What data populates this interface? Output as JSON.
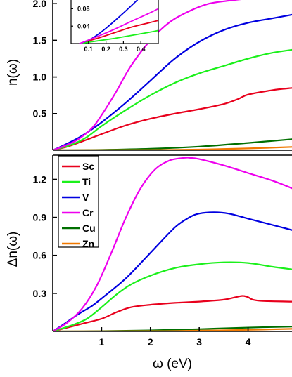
{
  "chart_data": [
    {
      "type": "line",
      "panel": "top",
      "xlabel": "",
      "ylabel": "n(ω)",
      "xlim": [
        0,
        4.9
      ],
      "ylim": [
        0,
        2.05
      ],
      "yticks": [
        "0.5",
        "1.0",
        "1.5",
        "2.0"
      ],
      "series": [
        {
          "name": "Sc",
          "color": "#e8001c",
          "x": [
            0,
            0.3,
            0.6,
            1.0,
            1.5,
            2.0,
            2.5,
            3.0,
            3.5,
            3.8,
            4.0,
            4.5,
            4.9
          ],
          "y": [
            0,
            0.05,
            0.12,
            0.22,
            0.34,
            0.43,
            0.5,
            0.56,
            0.63,
            0.7,
            0.76,
            0.82,
            0.85
          ]
        },
        {
          "name": "Ti",
          "color": "#1bf01b",
          "x": [
            0,
            0.4,
            0.7,
            1.0,
            1.5,
            2.0,
            2.5,
            3.0,
            3.5,
            4.0,
            4.5,
            4.9
          ],
          "y": [
            0,
            0.08,
            0.18,
            0.33,
            0.55,
            0.75,
            0.92,
            1.05,
            1.15,
            1.25,
            1.33,
            1.37
          ]
        },
        {
          "name": "V",
          "color": "#0000e0",
          "x": [
            0,
            0.2,
            0.5,
            0.7,
            1.0,
            1.5,
            2.0,
            2.5,
            3.0,
            3.5,
            4.0,
            4.5,
            4.9
          ],
          "y": [
            0,
            0.06,
            0.16,
            0.24,
            0.38,
            0.65,
            0.95,
            1.25,
            1.48,
            1.64,
            1.74,
            1.8,
            1.85
          ]
        },
        {
          "name": "Cr",
          "color": "#ee00ee",
          "x": [
            0,
            0.2,
            0.5,
            0.8,
            1.0,
            1.3,
            1.6,
            2.0,
            2.4,
            2.8,
            3.2,
            3.6,
            3.85
          ],
          "y": [
            0,
            0.05,
            0.14,
            0.3,
            0.48,
            0.8,
            1.15,
            1.5,
            1.75,
            1.9,
            2.0,
            2.04,
            2.06
          ]
        },
        {
          "name": "Cu",
          "color": "#006f00",
          "x": [
            0,
            1.0,
            2.0,
            3.0,
            4.0,
            4.9
          ],
          "y": [
            0,
            0.005,
            0.02,
            0.05,
            0.1,
            0.15
          ]
        },
        {
          "name": "Zn",
          "color": "#f07800",
          "x": [
            0,
            2.0,
            3.0,
            4.0,
            4.9
          ],
          "y": [
            0,
            0.003,
            0.01,
            0.025,
            0.045
          ]
        }
      ]
    },
    {
      "type": "line",
      "panel": "inset",
      "xlim": [
        0,
        0.5
      ],
      "ylim": [
        0,
        0.1
      ],
      "xticks": [
        "0.1",
        "0.2",
        "0.3",
        "0.4"
      ],
      "yticks": [
        "0.04",
        "0.08"
      ],
      "series": [
        {
          "name": "Sc",
          "color": "#e8001c",
          "x": [
            0.05,
            0.15,
            0.25,
            0.35,
            0.45,
            0.5
          ],
          "y": [
            0,
            0.012,
            0.025,
            0.038,
            0.048,
            0.053
          ]
        },
        {
          "name": "Ti",
          "color": "#1bf01b",
          "x": [
            0.05,
            0.15,
            0.25,
            0.35,
            0.45,
            0.5
          ],
          "y": [
            0,
            0.006,
            0.012,
            0.019,
            0.026,
            0.03
          ]
        },
        {
          "name": "V",
          "color": "#0000e0",
          "x": [
            0.05,
            0.12,
            0.2,
            0.3,
            0.38
          ],
          "y": [
            0,
            0.012,
            0.035,
            0.07,
            0.1
          ]
        },
        {
          "name": "Cr",
          "color": "#ee00ee",
          "x": [
            0.05,
            0.15,
            0.25,
            0.35,
            0.45,
            0.5
          ],
          "y": [
            0,
            0.016,
            0.033,
            0.052,
            0.07,
            0.08
          ]
        }
      ]
    },
    {
      "type": "line",
      "panel": "bottom",
      "xlabel": "ω (eV)",
      "ylabel": "Δn(ω)",
      "xlim": [
        0,
        4.9
      ],
      "ylim": [
        0,
        1.38
      ],
      "xticks": [
        "1",
        "2",
        "3",
        "4"
      ],
      "yticks": [
        "0.3",
        "0.6",
        "0.9",
        "1.2"
      ],
      "legend_position": "top-left",
      "series": [
        {
          "name": "Sc",
          "color": "#e8001c",
          "x": [
            0,
            0.3,
            0.6,
            1.0,
            1.3,
            1.6,
            2.0,
            2.5,
            3.0,
            3.5,
            3.8,
            3.9,
            4.0,
            4.1,
            4.3,
            4.9
          ],
          "y": [
            0,
            0.03,
            0.06,
            0.1,
            0.15,
            0.19,
            0.21,
            0.225,
            0.235,
            0.25,
            0.275,
            0.28,
            0.27,
            0.25,
            0.24,
            0.235
          ]
        },
        {
          "name": "Ti",
          "color": "#1bf01b",
          "x": [
            0,
            0.4,
            0.7,
            1.0,
            1.3,
            1.6,
            2.0,
            2.5,
            3.0,
            3.5,
            4.0,
            4.5,
            4.9
          ],
          "y": [
            0,
            0.05,
            0.1,
            0.19,
            0.29,
            0.37,
            0.44,
            0.5,
            0.53,
            0.545,
            0.54,
            0.51,
            0.49
          ]
        },
        {
          "name": "V",
          "color": "#0000e0",
          "x": [
            0,
            0.2,
            0.5,
            0.8,
            1.0,
            1.5,
            2.0,
            2.5,
            2.8,
            3.0,
            3.3,
            3.6,
            4.0,
            4.5,
            4.9
          ],
          "y": [
            0,
            0.05,
            0.13,
            0.2,
            0.26,
            0.42,
            0.62,
            0.82,
            0.9,
            0.93,
            0.94,
            0.93,
            0.89,
            0.84,
            0.8
          ]
        },
        {
          "name": "Cr",
          "color": "#ee00ee",
          "x": [
            0,
            0.3,
            0.6,
            0.9,
            1.2,
            1.5,
            1.8,
            2.1,
            2.4,
            2.7,
            2.8,
            3.0,
            3.5,
            4.0,
            4.5,
            4.9
          ],
          "y": [
            0,
            0.07,
            0.18,
            0.36,
            0.62,
            0.9,
            1.13,
            1.28,
            1.35,
            1.37,
            1.37,
            1.36,
            1.31,
            1.25,
            1.19,
            1.13
          ]
        },
        {
          "name": "Cu",
          "color": "#006f00",
          "x": [
            0,
            1.0,
            2.0,
            3.0,
            4.0,
            4.9
          ],
          "y": [
            0,
            0.002,
            0.008,
            0.018,
            0.03,
            0.038
          ]
        },
        {
          "name": "Zn",
          "color": "#f07800",
          "x": [
            0,
            2.0,
            3.0,
            4.0,
            4.9
          ],
          "y": [
            0,
            0.002,
            0.006,
            0.012,
            0.02
          ]
        }
      ]
    }
  ]
}
